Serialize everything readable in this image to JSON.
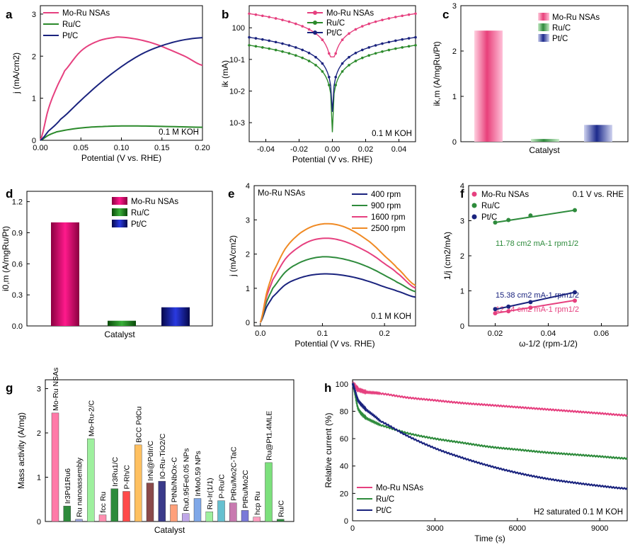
{
  "chart_data": [
    {
      "id": "a",
      "panel_label": "a",
      "type": "line",
      "xlabel": "Potential (V vs. RHE)",
      "ylabel": "j (mA/cm2)",
      "xlim": [
        0,
        0.2
      ],
      "ylim": [
        0,
        3.2
      ],
      "xticks": [
        "0.00",
        "0.05",
        "0.10",
        "0.15",
        "0.20"
      ],
      "xtick_values": [
        0,
        0.05,
        0.1,
        0.15,
        0.2
      ],
      "yticks": [
        "0",
        "1",
        "2",
        "3"
      ],
      "ytick_values": [
        0,
        1,
        2,
        3
      ],
      "annotation": "0.1 M KOH",
      "legend_position": "top-left",
      "series": [
        {
          "name": "Mo-Ru NSAs",
          "color": "#e6407f",
          "x": [
            0,
            0.01,
            0.02,
            0.03,
            0.05,
            0.07,
            0.09,
            0.1,
            0.12,
            0.14,
            0.16,
            0.18,
            0.2
          ],
          "y": [
            0,
            0.75,
            1.25,
            1.65,
            2.12,
            2.35,
            2.44,
            2.45,
            2.4,
            2.3,
            2.15,
            1.98,
            1.78
          ]
        },
        {
          "name": "Ru/C",
          "color": "#2b8a2b",
          "x": [
            0,
            0.01,
            0.02,
            0.04,
            0.06,
            0.08,
            0.1,
            0.12,
            0.15,
            0.2
          ],
          "y": [
            0,
            0.12,
            0.2,
            0.27,
            0.31,
            0.33,
            0.34,
            0.34,
            0.33,
            0.31
          ]
        },
        {
          "name": "Pt/C",
          "color": "#1a237e",
          "x": [
            0,
            0.01,
            0.025,
            0.05,
            0.075,
            0.1,
            0.125,
            0.15,
            0.175,
            0.2
          ],
          "y": [
            0,
            0.22,
            0.5,
            0.95,
            1.38,
            1.75,
            2.05,
            2.25,
            2.38,
            2.44
          ]
        }
      ]
    },
    {
      "id": "b",
      "panel_label": "b",
      "type": "line",
      "xlabel": "Potential (V vs. RHE)",
      "ylabel": "ik (mA)",
      "yscale": "log",
      "xlim": [
        -0.05,
        0.05
      ],
      "ylim": [
        0.00025,
        5
      ],
      "xticks": [
        "-0.04",
        "-0.02",
        "0.00",
        "0.02",
        "0.04"
      ],
      "xtick_values": [
        -0.04,
        -0.02,
        0,
        0.02,
        0.04
      ],
      "yticks": [
        "10-3",
        "10-2",
        "10-1",
        "100"
      ],
      "ytick_values": [
        0.001,
        0.01,
        0.1,
        1
      ],
      "annotation": "0.1 M KOH",
      "legend_position": "top-center",
      "series": [
        {
          "name": "Mo-Ru NSAs",
          "color": "#e6407f",
          "amplitude": 2.8,
          "floor": 0.12
        },
        {
          "name": "Ru/C",
          "color": "#2b8a2b",
          "amplitude": 0.28,
          "floor": 0.0005
        },
        {
          "name": "Pt/C",
          "color": "#1a237e",
          "amplitude": 0.5,
          "floor": 0.0022
        }
      ]
    },
    {
      "id": "c",
      "panel_label": "c",
      "type": "bar",
      "xlabel": "Catalyst",
      "ylabel": "ik,m (A/mgRu/Pt)",
      "ylim": [
        0,
        3
      ],
      "yticks": [
        "0",
        "1",
        "2",
        "3"
      ],
      "ytick_values": [
        0,
        1,
        2,
        3
      ],
      "categories": [
        "Mo-Ru NSAs",
        "Ru/C",
        "Pt/C"
      ],
      "values": [
        2.45,
        0.06,
        0.37
      ],
      "colors": [
        "#e8407a",
        "#2e8b3c",
        "#1c2a8c"
      ]
    },
    {
      "id": "d",
      "panel_label": "d",
      "type": "bar",
      "xlabel": "Catalyst",
      "ylabel": "i0,m (A/mgRu/Pt)",
      "ylim": [
        0,
        1.3
      ],
      "yticks": [
        "0.0",
        "0.3",
        "0.6",
        "0.9",
        "1.2"
      ],
      "ytick_values": [
        0,
        0.3,
        0.6,
        0.9,
        1.2
      ],
      "categories": [
        "Mo-Ru NSAs",
        "Ru/C",
        "Pt/C"
      ],
      "values": [
        1.0,
        0.05,
        0.18
      ],
      "colors": [
        "#d60a6e",
        "#1e7a1e",
        "#101a8e"
      ]
    },
    {
      "id": "e",
      "panel_label": "e",
      "type": "line",
      "xlabel": "Potential (V vs. RHE)",
      "ylabel": "j (mA/cm2)",
      "xlim": [
        -0.01,
        0.25
      ],
      "ylim": [
        -0.1,
        4
      ],
      "xticks": [
        "0.0",
        "0.1",
        "0.2"
      ],
      "xtick_values": [
        0,
        0.1,
        0.2
      ],
      "yticks": [
        "0",
        "1",
        "2",
        "3",
        "4"
      ],
      "ytick_values": [
        0,
        1,
        2,
        3,
        4
      ],
      "annotation": "0.1 M KOH",
      "title_text": "Mo-Ru NSAs",
      "legend_position": "top-right",
      "x": [
        0,
        0.01,
        0.02,
        0.04,
        0.06,
        0.08,
        0.1,
        0.12,
        0.14,
        0.16,
        0.18,
        0.2,
        0.22,
        0.25
      ],
      "series": [
        {
          "name": "400 rpm",
          "color": "#1a237e",
          "y": [
            0,
            0.45,
            0.75,
            1.1,
            1.28,
            1.38,
            1.42,
            1.41,
            1.36,
            1.28,
            1.17,
            1.04,
            0.92,
            0.74
          ]
        },
        {
          "name": "900 rpm",
          "color": "#2e8b3c",
          "y": [
            0,
            0.6,
            1.0,
            1.47,
            1.72,
            1.86,
            1.92,
            1.9,
            1.83,
            1.72,
            1.57,
            1.38,
            1.18,
            0.9
          ]
        },
        {
          "name": "1600 rpm",
          "color": "#e6407f",
          "y": [
            0,
            0.75,
            1.25,
            1.85,
            2.18,
            2.38,
            2.46,
            2.44,
            2.34,
            2.18,
            1.98,
            1.72,
            1.45,
            1.0
          ]
        },
        {
          "name": "2500 rpm",
          "color": "#f08a24",
          "y": [
            0,
            0.85,
            1.45,
            2.15,
            2.55,
            2.78,
            2.88,
            2.87,
            2.76,
            2.56,
            2.3,
            1.95,
            1.6,
            1.08
          ]
        }
      ]
    },
    {
      "id": "f",
      "panel_label": "f",
      "type": "scatter",
      "xlabel": "ω-1/2 (rpm-1/2)",
      "ylabel": "1/j (cm2/mA)",
      "xlim": [
        0.01,
        0.07
      ],
      "ylim": [
        0,
        4
      ],
      "xticks": [
        "0.02",
        "0.04",
        "0.06"
      ],
      "xtick_values": [
        0.02,
        0.04,
        0.06
      ],
      "yticks": [
        "0",
        "1",
        "2",
        "3",
        "4"
      ],
      "ytick_values": [
        0,
        1,
        2,
        3,
        4
      ],
      "annotation": "0.1 V vs. RHE",
      "legend_position": "top-left",
      "x": [
        0.02,
        0.025,
        0.0333,
        0.05
      ],
      "series": [
        {
          "name": "Mo-Ru NSAs",
          "color": "#e6407f",
          "y": [
            0.36,
            0.42,
            0.52,
            0.72
          ],
          "fit": [
            0.36,
            0.73
          ],
          "label": "12.24 cm2 mA-1 rpm1/2"
        },
        {
          "name": "Ru/C",
          "color": "#2e8b3c",
          "y": [
            2.95,
            3.02,
            3.15,
            3.3
          ],
          "fit": [
            2.95,
            3.3
          ],
          "label": "11.78 cm2 mA-1 rpm1/2"
        },
        {
          "name": "Pt/C",
          "color": "#1a237e",
          "y": [
            0.48,
            0.55,
            0.68,
            0.96
          ],
          "fit": [
            0.47,
            0.96
          ],
          "label": "15.38 cm2 mA-1 rpm1/2"
        }
      ]
    },
    {
      "id": "g",
      "panel_label": "g",
      "type": "bar",
      "xlabel": "Catalyst",
      "ylabel": "Mass activity (A/mg)",
      "ylim": [
        0,
        3.2
      ],
      "yticks": [
        "0",
        "1",
        "2",
        "3"
      ],
      "ytick_values": [
        0,
        1,
        2,
        3
      ],
      "categories": [
        "Mo-Ru NSAs",
        "Ir3Pd1Ru6",
        "Ru nanoassembly",
        "Mo-Ru-2/C",
        "fcc Ru",
        "Ir3Ru1/C",
        "P-Rh/C",
        "BCC PdCu",
        "IrNi@PdIr/C",
        "IO-Ru-TiO2/C",
        "PtNb/NbOx-C",
        "Ru0.95Fe0.05 NPs",
        "IrMo0.59 NPs",
        "Ru-Ir(1/1)",
        "P-Ru/C",
        "PtRu/Mo2C-TaC",
        "PtRu/Mo2C",
        "hcp Ru",
        "Ru@Pt1.4MLE",
        "Ru/C"
      ],
      "values": [
        2.45,
        0.35,
        0.05,
        1.87,
        0.15,
        0.74,
        0.68,
        1.73,
        0.87,
        0.91,
        0.38,
        0.18,
        0.52,
        0.22,
        0.47,
        0.42,
        0.25,
        0.1,
        1.33,
        0.05
      ],
      "colors": [
        "#ff7aa8",
        "#2e8b3c",
        "#9aa3d8",
        "#9ef09e",
        "#ff8fb0",
        "#2e8b3c",
        "#ff4a4a",
        "#ffc060",
        "#8a4a4a",
        "#3a3a8a",
        "#ffa07a",
        "#c0a8e8",
        "#80a8e8",
        "#9ef09e",
        "#66c0d0",
        "#c87ab0",
        "#7a7ad8",
        "#ff9ec0",
        "#7ce07c",
        "#2e8b3c"
      ]
    },
    {
      "id": "h",
      "panel_label": "h",
      "type": "line",
      "xlabel": "Time (s)",
      "ylabel": "Relative current (%)",
      "xlim": [
        0,
        10000
      ],
      "ylim": [
        0,
        103
      ],
      "xticks": [
        "0",
        "3000",
        "6000",
        "9000"
      ],
      "xtick_values": [
        0,
        3000,
        6000,
        9000
      ],
      "yticks": [
        "0",
        "20",
        "40",
        "60",
        "80",
        "100"
      ],
      "ytick_values": [
        0,
        20,
        40,
        60,
        80,
        100
      ],
      "annotation": "H2 saturated 0.1 M KOH",
      "legend_position": "bottom-left",
      "x": [
        0,
        200,
        500,
        1000,
        2000,
        3000,
        4000,
        5000,
        6000,
        7000,
        8000,
        9000,
        10000
      ],
      "series": [
        {
          "name": "Mo-Ru NSAs",
          "color": "#e6407f",
          "y": [
            100,
            96,
            94,
            93,
            90,
            88,
            86,
            84.5,
            83,
            81.5,
            80,
            78.5,
            77
          ]
        },
        {
          "name": "Ru/C",
          "color": "#2e8b3c",
          "y": [
            100,
            82,
            75,
            70,
            64,
            60,
            57,
            54,
            52,
            50,
            48.5,
            47,
            45.5
          ]
        },
        {
          "name": "Pt/C",
          "color": "#1a237e",
          "y": [
            100,
            88,
            81,
            73,
            62,
            53,
            46,
            40,
            35,
            31,
            28,
            25.5,
            23.5
          ]
        }
      ]
    }
  ]
}
